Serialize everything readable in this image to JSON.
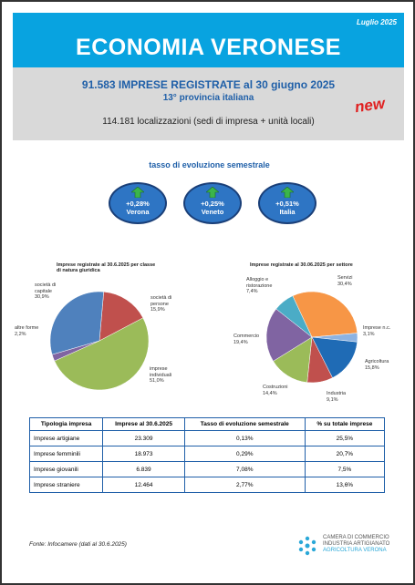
{
  "header": {
    "date": "Luglio 2025",
    "title": "ECONOMIA VERONESE"
  },
  "summary": {
    "headline": "91.583 IMPRESE REGISTRATE al 30 giugno 2025",
    "rank": "13° provincia italiana",
    "localizations": "114.181 localizzazioni (sedi di impresa + unità locali)",
    "badge": "new"
  },
  "growth": {
    "title": "tasso di evoluzione semestrale",
    "items": [
      {
        "value": "+0,28%",
        "label": "Verona"
      },
      {
        "value": "+0,25%",
        "label": "Veneto"
      },
      {
        "value": "+0,51%",
        "label": "Italia"
      }
    ]
  },
  "chart_data": [
    {
      "type": "pie",
      "title": "Imprese registrate al 30.6.2025 per classe di natura giuridica",
      "categories": [
        "società di persone",
        "imprese individuali",
        "altre forme",
        "società di capitale"
      ],
      "values": [
        15.9,
        51.0,
        2.2,
        30.9
      ],
      "value_labels": [
        "15,9%",
        "51,0%",
        "2,2%",
        "30,9%"
      ],
      "colors": [
        "#c0504d",
        "#9bbb59",
        "#8064a2",
        "#4f81bd"
      ]
    },
    {
      "type": "pie",
      "title": "Imprese registrate al 30.06.2025 per settore",
      "categories": [
        "Servizi",
        "Imprese n.c.",
        "Agricoltura",
        "Industria",
        "Costruzioni",
        "Commercio",
        "Alloggio e ristorazione"
      ],
      "values": [
        30.4,
        3.1,
        15.8,
        9.1,
        14.4,
        19.4,
        7.4
      ],
      "value_labels": [
        "30,4%",
        "3,1%",
        "15,8%",
        "9,1%",
        "14,4%",
        "19,4%",
        "7,4%"
      ],
      "colors": [
        "#f79646",
        "#8db3e2",
        "#1f6bb5",
        "#c0504d",
        "#9bbb59",
        "#8064a2",
        "#4bacc6"
      ]
    }
  ],
  "table": {
    "header": [
      "Tipologia impresa",
      "Imprese al 30.6.2025",
      "Tasso di evoluzione semestrale",
      "% su totale imprese"
    ],
    "rows": [
      [
        "Imprese artigiane",
        "23.309",
        "0,13%",
        "25,5%"
      ],
      [
        "Imprese femminili",
        "18.973",
        "0,29%",
        "20,7%"
      ],
      [
        "Imprese giovanili",
        "6.839",
        "7,08%",
        "7,5%"
      ],
      [
        "Imprese straniere",
        "12.464",
        "2,77%",
        "13,6%"
      ]
    ]
  },
  "footer": {
    "source": "Fonte: Infocamere (dati al 30.6.2025)",
    "logo": [
      "CAMERA DI COMMERCIO",
      "INDUSTRIA ARTIGIANATO",
      "AGRICOLTURA VERONA"
    ]
  }
}
